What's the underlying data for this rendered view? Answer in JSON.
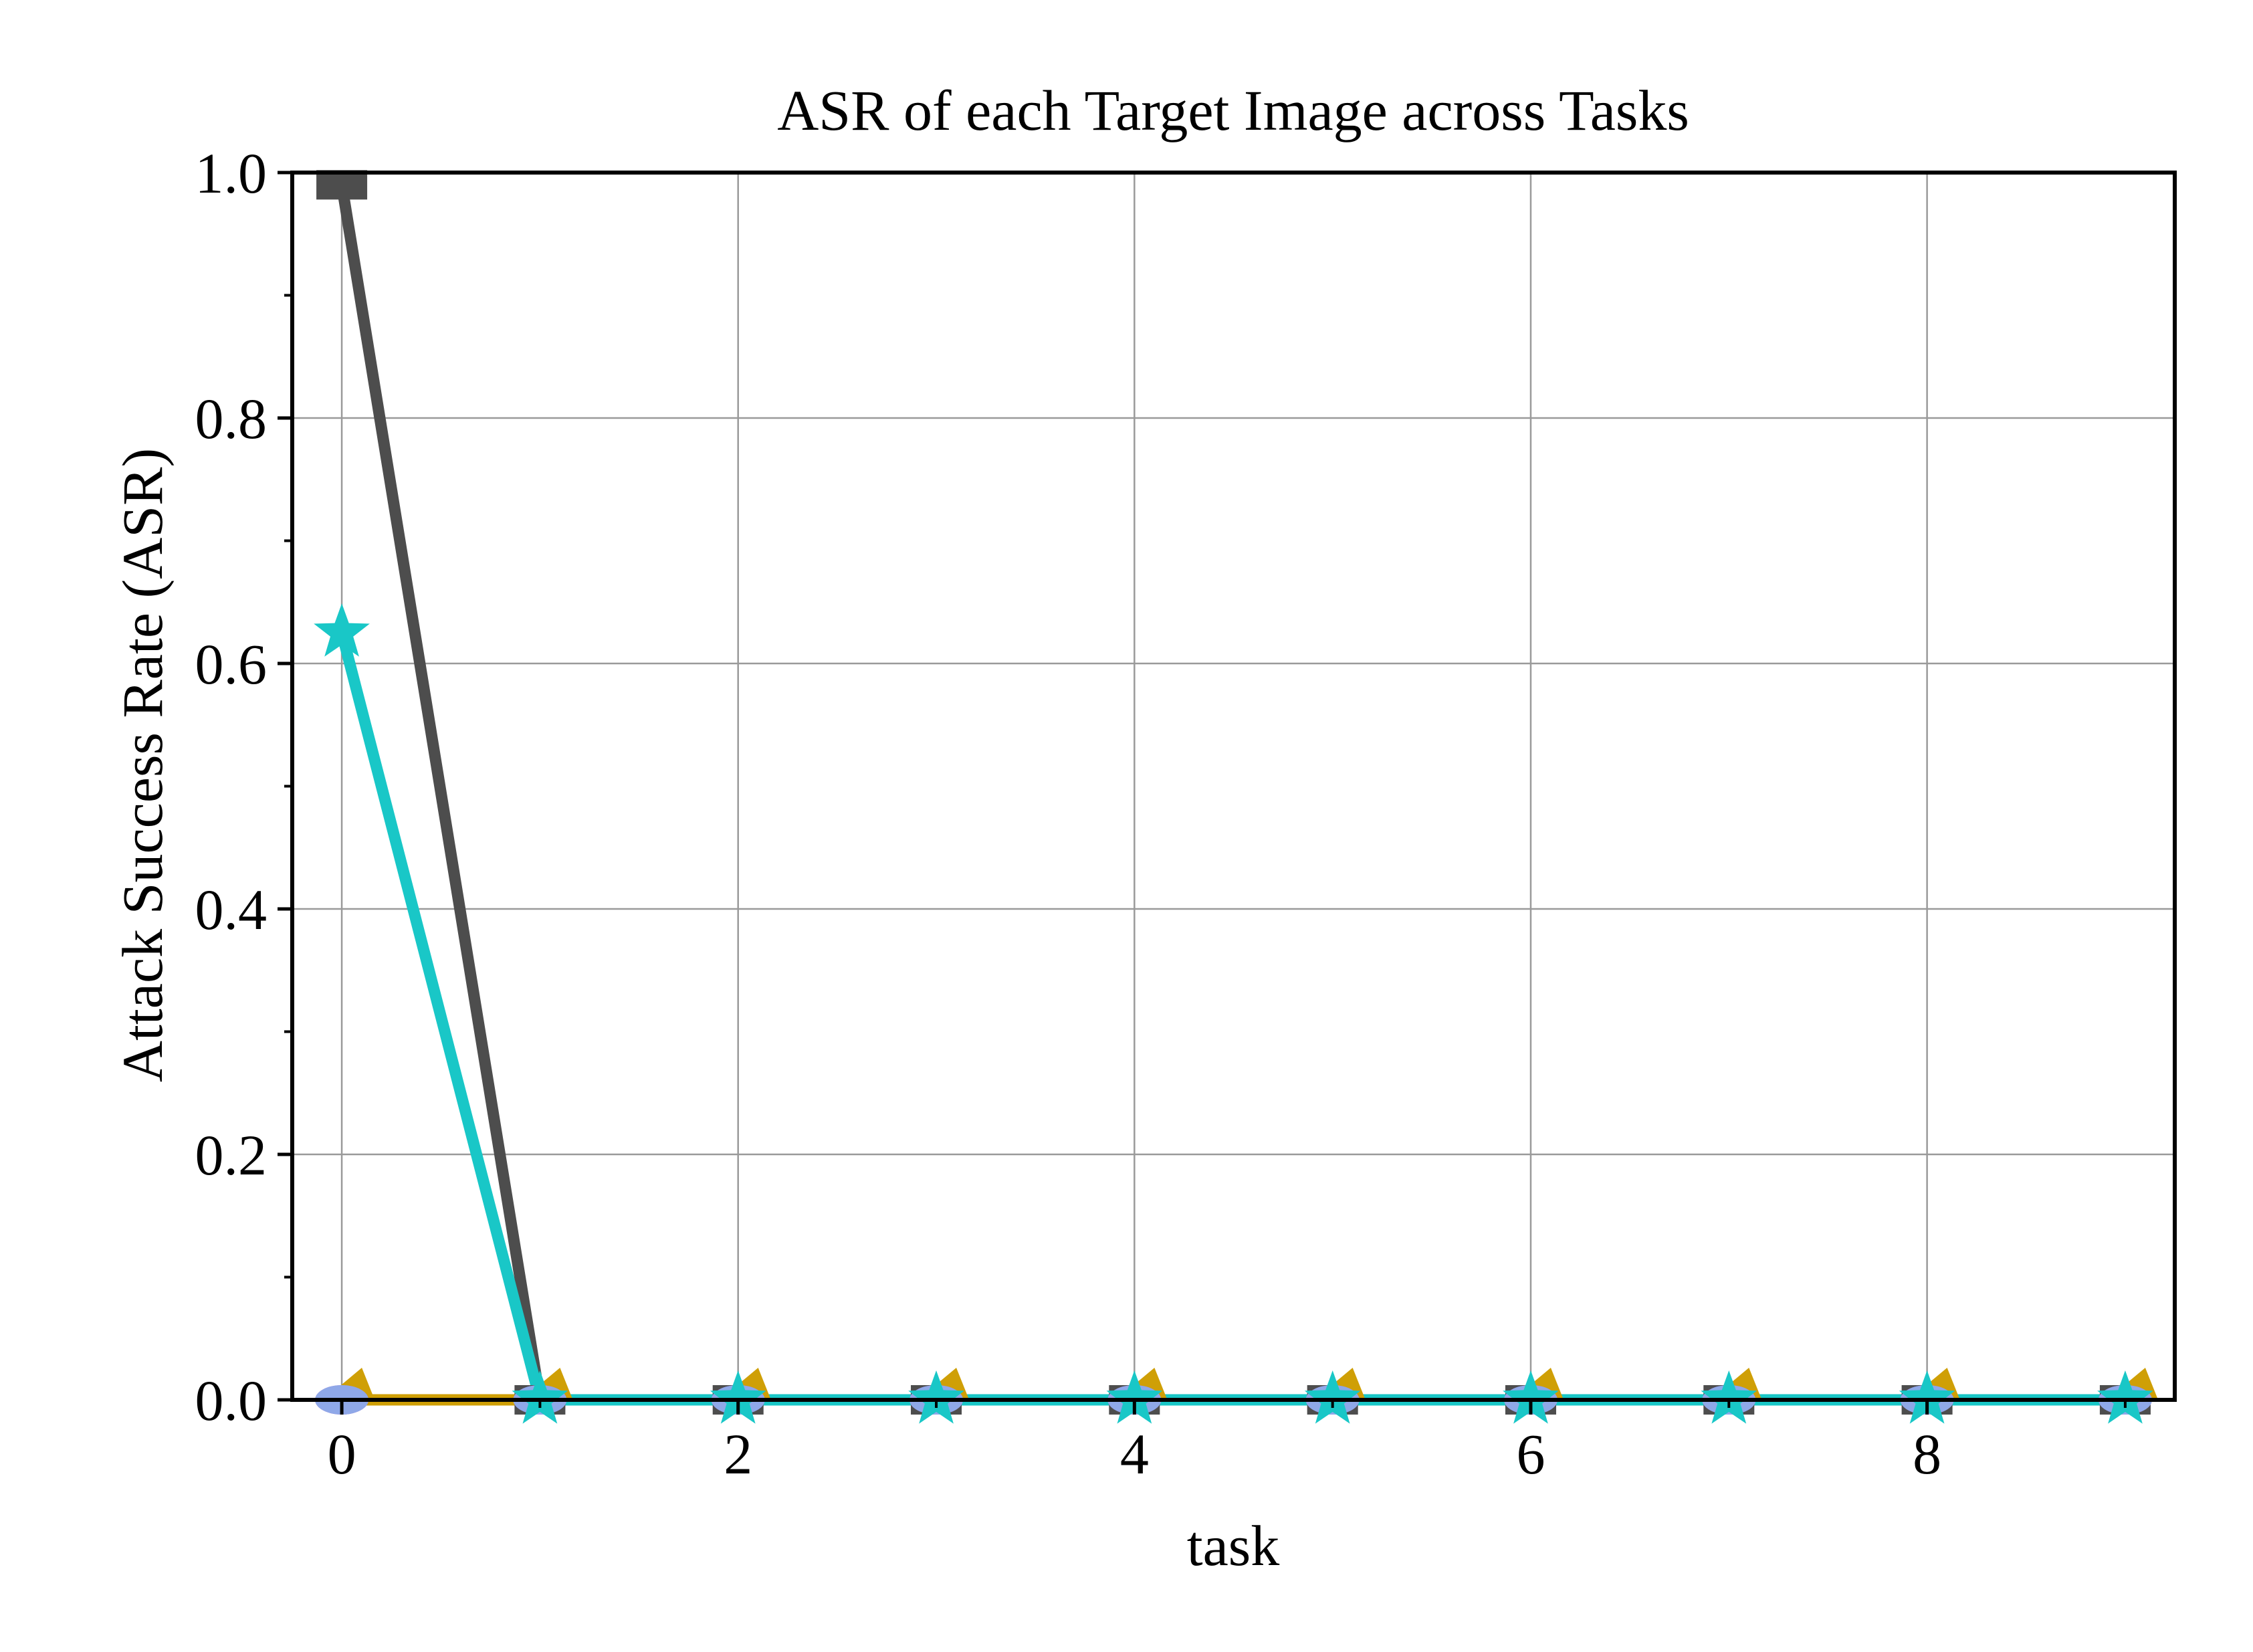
{
  "chart_data": {
    "type": "line",
    "title": "ASR of each Target Image across Tasks",
    "xlabel": "task",
    "ylabel": "Attack Success Rate (ASR)",
    "xlim": [
      -0.25,
      9.25
    ],
    "ylim": [
      0,
      1
    ],
    "xticks": [
      0,
      2,
      4,
      6,
      8
    ],
    "xtick_labels": [
      "0",
      "2",
      "4",
      "6",
      "8"
    ],
    "yticks": [
      0,
      0.2,
      0.4,
      0.6,
      0.8,
      1.0
    ],
    "ytick_labels": [
      "0.0",
      "0.2",
      "0.4",
      "0.6",
      "0.8",
      "1.0"
    ],
    "grid": true,
    "legend": false,
    "x": [
      0,
      1,
      2,
      3,
      4,
      5,
      6,
      7,
      8,
      9
    ],
    "series": [
      {
        "color": "#4d4d4d",
        "marker": "square",
        "values": [
          0.99,
          0,
          0,
          0,
          0,
          0,
          0,
          0,
          0,
          0
        ]
      },
      {
        "color": "#b25fd0",
        "marker": "circle",
        "values": [
          0,
          0,
          0,
          0,
          0,
          0,
          0,
          0,
          0,
          0
        ]
      },
      {
        "color": "#cf9f06",
        "marker": "triangle",
        "values": [
          0,
          0,
          0,
          0,
          0,
          0,
          0,
          0,
          0,
          0
        ]
      },
      {
        "color": "#8fa8e8",
        "marker": "circle",
        "values": [
          0,
          0,
          0,
          0,
          0,
          0,
          0,
          0,
          0,
          0
        ]
      },
      {
        "color": "#19c7c7",
        "marker": "star",
        "values": [
          0.625,
          0,
          0,
          0,
          0,
          0,
          0,
          0,
          0,
          0
        ]
      }
    ]
  }
}
